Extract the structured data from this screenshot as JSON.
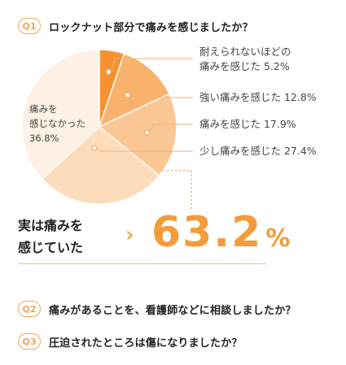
{
  "questions": [
    {
      "badge": "Q1",
      "text": "ロックナット部分で痛みを感じましたか？"
    },
    {
      "badge": "Q2",
      "text": "痛みがあることを、看護師などに相談しましたか？"
    },
    {
      "badge": "Q3",
      "text": "圧迫されたところは傷になりましたか？"
    }
  ],
  "result": {
    "line1": "実は痛みを",
    "line2": "感じていた",
    "chevron": "›",
    "value": "63.2",
    "unit": "%"
  },
  "colors": {
    "accent": "#f59b3a",
    "badge": "#f2a65a",
    "dotted_line": "#f0b27a"
  },
  "chart_data": {
    "type": "pie",
    "title": "",
    "slices": [
      {
        "label": "耐えられないほどの痛みを感じた",
        "label_lines": [
          "耐えられないほどの",
          "痛みを感じた 5.2%"
        ],
        "value": 5.2,
        "color": "#f5922f"
      },
      {
        "label": "強い痛みを感じた",
        "label_lines": [
          "強い痛みを感じた 12.8%"
        ],
        "value": 12.8,
        "color": "#f8b26c"
      },
      {
        "label": "痛みを感じた",
        "label_lines": [
          "痛みを感じた 17.9%"
        ],
        "value": 17.9,
        "color": "#fbc794"
      },
      {
        "label": "少し痛みを感じた",
        "label_lines": [
          "少し痛みを感じた 27.4%"
        ],
        "value": 27.4,
        "color": "#fcdcbb"
      },
      {
        "label": "痛みを感じなかった",
        "label_lines": [
          "痛みを",
          "感じなかった",
          "36.8%"
        ],
        "value": 36.8,
        "color": "#fdf0e4"
      }
    ]
  }
}
